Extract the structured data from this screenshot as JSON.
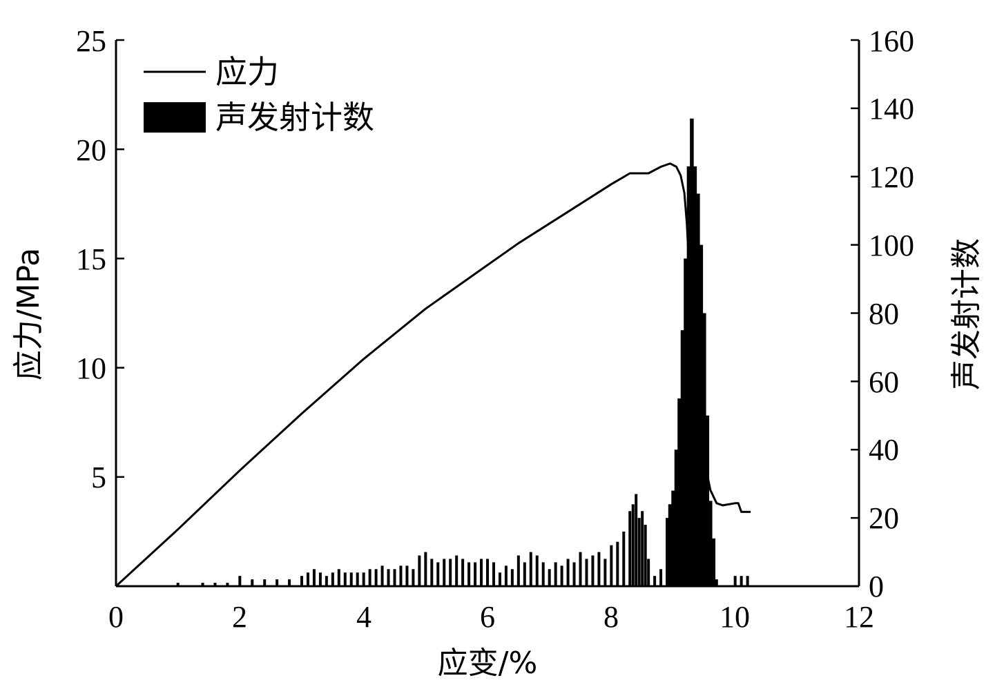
{
  "chart_data": {
    "type": "bar+line",
    "xlabel": "应变/%",
    "ylabel_left": "应力/MPa",
    "ylabel_right": "声发射计数",
    "xlim": [
      0,
      12
    ],
    "ylim_left": [
      0,
      25
    ],
    "ylim_right": [
      0,
      160
    ],
    "x_ticks": [
      "0",
      "2",
      "4",
      "6",
      "8",
      "10",
      "12"
    ],
    "y_left_ticks": [
      "5",
      "10",
      "15",
      "20",
      "25"
    ],
    "y_right_ticks": [
      "0",
      "20",
      "40",
      "60",
      "80",
      "100",
      "120",
      "140",
      "160"
    ],
    "legend": {
      "position": "top-left",
      "entries": [
        {
          "label": "应力",
          "kind": "line"
        },
        {
          "label": "声发射计数",
          "kind": "bar"
        }
      ]
    },
    "colors": {
      "stress": "#000000",
      "ae": "#000000",
      "axis": "#000000"
    },
    "series": [
      {
        "name": "应力",
        "axis": "left",
        "kind": "line",
        "x": [
          0,
          1,
          2,
          3,
          4,
          5,
          6,
          6.5,
          7,
          7.5,
          8,
          8.3,
          8.6,
          8.8,
          8.95,
          9.05,
          9.12,
          9.18,
          9.22,
          9.26,
          9.32,
          9.4,
          9.5,
          9.6,
          9.7,
          9.8,
          10.0,
          10.05,
          10.1,
          10.25
        ],
        "y": [
          0,
          2.6,
          5.3,
          7.9,
          10.4,
          12.7,
          14.7,
          15.7,
          16.6,
          17.5,
          18.4,
          18.9,
          18.9,
          19.2,
          19.35,
          19.2,
          18.8,
          18.0,
          16.6,
          14.4,
          11.0,
          8.0,
          5.8,
          4.4,
          3.8,
          3.7,
          3.8,
          3.8,
          3.4,
          3.4
        ]
      },
      {
        "name": "声发射计数",
        "axis": "right",
        "kind": "bar",
        "x": [
          1.0,
          1.4,
          1.6,
          1.8,
          2.0,
          2.2,
          2.4,
          2.6,
          2.8,
          3.0,
          3.1,
          3.2,
          3.3,
          3.4,
          3.5,
          3.6,
          3.7,
          3.8,
          3.9,
          4.0,
          4.1,
          4.2,
          4.3,
          4.4,
          4.5,
          4.6,
          4.7,
          4.8,
          4.9,
          5.0,
          5.1,
          5.2,
          5.3,
          5.4,
          5.5,
          5.6,
          5.7,
          5.8,
          5.9,
          6.0,
          6.1,
          6.2,
          6.3,
          6.4,
          6.5,
          6.6,
          6.7,
          6.8,
          6.9,
          7.0,
          7.1,
          7.2,
          7.3,
          7.4,
          7.5,
          7.6,
          7.7,
          7.8,
          7.9,
          8.0,
          8.1,
          8.2,
          8.3,
          8.35,
          8.4,
          8.45,
          8.5,
          8.55,
          8.6,
          8.7,
          8.8,
          8.9,
          8.95,
          9.0,
          9.05,
          9.1,
          9.15,
          9.2,
          9.25,
          9.3,
          9.35,
          9.4,
          9.45,
          9.5,
          9.55,
          9.6,
          9.65,
          9.7,
          10.0,
          10.1,
          10.2
        ],
        "values": [
          1,
          1,
          1,
          1,
          3,
          2,
          2,
          2,
          2,
          3,
          4,
          5,
          4,
          3,
          4,
          5,
          4,
          4,
          4,
          4,
          5,
          5,
          6,
          5,
          5,
          6,
          6,
          5,
          9,
          10,
          8,
          7,
          8,
          8,
          9,
          8,
          7,
          7,
          8,
          8,
          7,
          4,
          6,
          5,
          9,
          7,
          10,
          9,
          7,
          5,
          7,
          6,
          8,
          7,
          10,
          8,
          9,
          10,
          8,
          12,
          13,
          16,
          22,
          24,
          27,
          20,
          22,
          18,
          8,
          3,
          5,
          20,
          24,
          28,
          40,
          55,
          75,
          96,
          123,
          137,
          123,
          115,
          100,
          80,
          50,
          25,
          14,
          2,
          3,
          3,
          3
        ]
      }
    ]
  }
}
